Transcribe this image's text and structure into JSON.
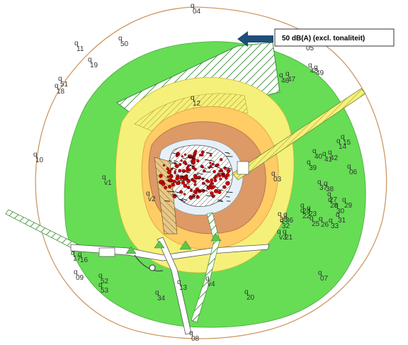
{
  "legend": {
    "text": "50 dB(A) (excl. tonaliteit)",
    "arrow_color": "#1f4e79"
  },
  "colors": {
    "boundary": "#cc9966",
    "zone_50": "#66dd55",
    "zone_55": "#f5f07a",
    "zone_60": "#ffcc66",
    "zone_65": "#dd9966",
    "zone_70": "#ffffff",
    "source_red": "#cc0000"
  },
  "points": [
    {
      "id": "04"
    },
    {
      "id": "05"
    },
    {
      "id": "11"
    },
    {
      "id": "50"
    },
    {
      "id": "19"
    },
    {
      "id": "51"
    },
    {
      "id": "18"
    },
    {
      "id": "48"
    },
    {
      "id": "49"
    },
    {
      "id": "46"
    },
    {
      "id": "47"
    },
    {
      "id": "12"
    },
    {
      "id": "15"
    },
    {
      "id": "14"
    },
    {
      "id": "10"
    },
    {
      "id": "06"
    },
    {
      "id": "39"
    },
    {
      "id": "40"
    },
    {
      "id": "41"
    },
    {
      "id": "42"
    },
    {
      "id": "03"
    },
    {
      "id": "v1"
    },
    {
      "id": "v2"
    },
    {
      "id": "37"
    },
    {
      "id": "38"
    },
    {
      "id": "27"
    },
    {
      "id": "28"
    },
    {
      "id": "29"
    },
    {
      "id": "30"
    },
    {
      "id": "31"
    },
    {
      "id": "24"
    },
    {
      "id": "23"
    },
    {
      "id": "25"
    },
    {
      "id": "26"
    },
    {
      "id": "35"
    },
    {
      "id": "36"
    },
    {
      "id": "33"
    },
    {
      "id": "32"
    },
    {
      "id": "22"
    },
    {
      "id": "21"
    },
    {
      "id": "v3"
    },
    {
      "id": "17"
    },
    {
      "id": "16"
    },
    {
      "id": "09"
    },
    {
      "id": "52"
    },
    {
      "id": "53"
    },
    {
      "id": "07"
    },
    {
      "id": "v4"
    },
    {
      "id": "20"
    },
    {
      "id": "34"
    },
    {
      "id": "13"
    },
    {
      "id": "08"
    }
  ]
}
